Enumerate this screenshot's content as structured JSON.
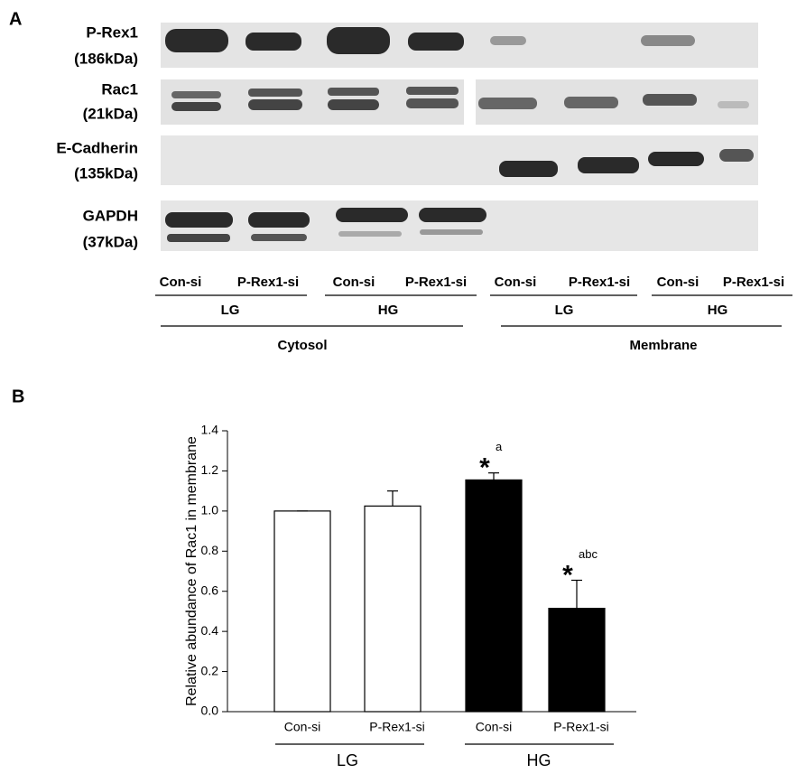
{
  "panel_a": {
    "label": "A",
    "proteins": [
      {
        "name": "P-Rex1",
        "size": "(186kDa)"
      },
      {
        "name": "Rac1",
        "size": "(21kDa)"
      },
      {
        "name": "E-Cadherin",
        "size": "(135kDa)"
      },
      {
        "name": "GAPDH",
        "size": "(37kDa)"
      }
    ],
    "lanes": [
      "Con-si",
      "P-Rex1-si",
      "Con-si",
      "P-Rex1-si",
      "Con-si",
      "P-Rex1-si",
      "Con-si",
      "P-Rex1-si"
    ],
    "glucose": [
      "LG",
      "HG",
      "LG",
      "HG"
    ],
    "fractions": [
      "Cytosol",
      "Membrane"
    ]
  },
  "chart_data": {
    "type": "bar",
    "panel_label": "B",
    "ylabel": "Relative abundance of Rac1 in membrane",
    "categories": [
      "Con-si",
      "P-Rex1-si",
      "Con-si",
      "P-Rex1-si"
    ],
    "values": [
      1.0,
      1.025,
      1.155,
      0.515
    ],
    "errors": [
      0,
      0.075,
      0.035,
      0.14
    ],
    "colors": [
      "#ffffff",
      "#ffffff",
      "#000000",
      "#000000"
    ],
    "groups": [
      "LG",
      "HG"
    ],
    "annotations": [
      null,
      null,
      {
        "mark": "*",
        "letters": "a"
      },
      {
        "mark": "*",
        "letters": "abc"
      }
    ],
    "ylim": [
      0,
      1.4
    ],
    "yticks": [
      {
        "value": 0,
        "label": "0.0"
      },
      0.2,
      0.4,
      0.6,
      0.8,
      {
        "value": 1,
        "label": "1.0"
      },
      1.2,
      1.4
    ]
  }
}
